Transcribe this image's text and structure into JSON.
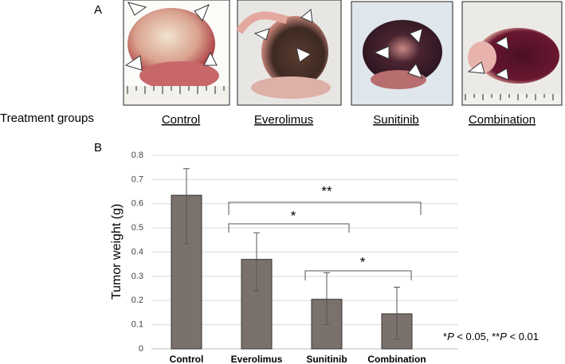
{
  "panel_a": "A",
  "panel_b": "B",
  "treatment_label": "Treatment groups",
  "groups": [
    "Control",
    "Everolimus",
    "Sunitinib",
    "Combination"
  ],
  "chart_data": {
    "type": "bar",
    "y_label": "Tumor weight (g)",
    "categories": [
      "Control",
      "Everolimus",
      "Sunitinib",
      "Combination"
    ],
    "values": [
      0.635,
      0.37,
      0.205,
      0.145
    ],
    "error_low": [
      0.2,
      0.13,
      0.105,
      0.105
    ],
    "error_high": [
      0.11,
      0.11,
      0.11,
      0.11
    ],
    "color": "#7a716c",
    "ylim": [
      0,
      0.8
    ],
    "yticks": [
      0,
      0.1,
      0.2,
      0.3,
      0.4,
      0.5,
      0.6,
      0.7,
      0.8
    ],
    "grid": true,
    "annotations": [
      "**",
      "*",
      "*"
    ],
    "footnote": [
      "*",
      "P",
      " < 0.05, **",
      "P",
      " < 0.01"
    ]
  }
}
